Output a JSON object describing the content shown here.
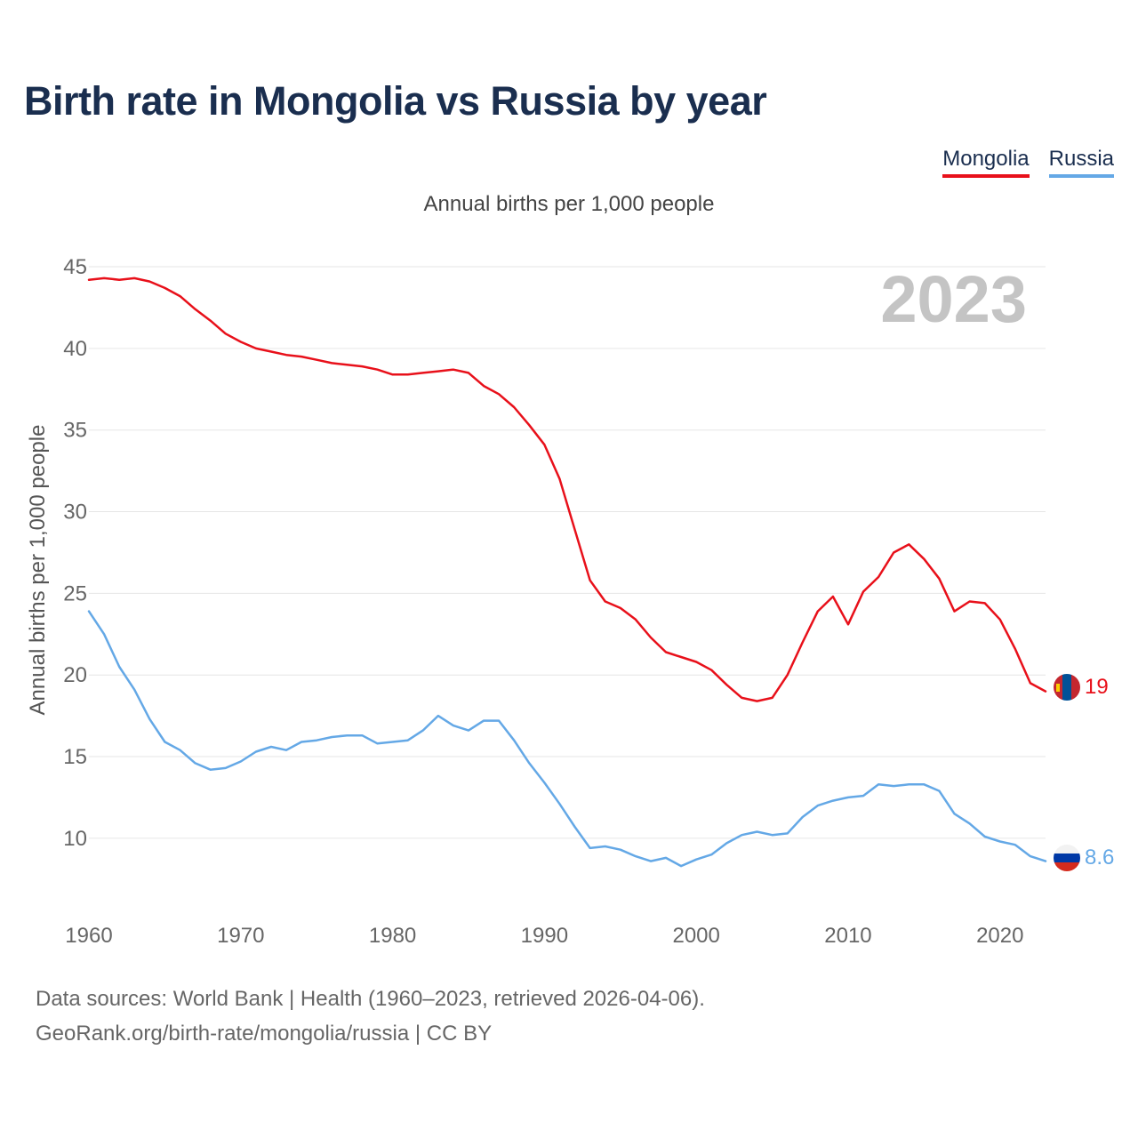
{
  "title": "Birth rate in Mongolia vs Russia by year",
  "subtitle": "Annual births per 1,000 people",
  "year_watermark": "2023",
  "legend": [
    {
      "label": "Mongolia",
      "color": "#e8101a"
    },
    {
      "label": "Russia",
      "color": "#64a8e6"
    }
  ],
  "footer": {
    "line1": "Data sources: World Bank | Health (1960–2023, retrieved 2026-04-06).",
    "line2": "GeoRank.org/birth-rate/mongolia/russia | CC BY"
  },
  "chart_data": {
    "type": "line",
    "title": "Birth rate in Mongolia vs Russia by year",
    "xlabel": "",
    "ylabel": "Annual births per 1,000 people",
    "xlim": [
      1960,
      2023
    ],
    "ylim": [
      5.8,
      46.2
    ],
    "yticks": [
      10,
      15,
      20,
      25,
      30,
      35,
      40,
      45
    ],
    "xticks": [
      1960,
      1970,
      1980,
      1990,
      2000,
      2010,
      2020
    ],
    "grid": true,
    "legend_position": "top-right",
    "x_start": 1960,
    "series": [
      {
        "name": "Mongolia",
        "color": "#e8101a",
        "end_label": "19",
        "flag": "mongolia-flag-icon",
        "values": [
          44.2,
          44.3,
          44.2,
          44.3,
          44.1,
          43.7,
          43.2,
          42.4,
          41.7,
          40.9,
          40.4,
          40.0,
          39.8,
          39.6,
          39.5,
          39.3,
          39.1,
          39.0,
          38.9,
          38.7,
          38.4,
          38.4,
          38.5,
          38.6,
          38.7,
          38.5,
          37.7,
          37.2,
          36.4,
          35.3,
          34.1,
          32.0,
          28.9,
          25.8,
          24.5,
          24.1,
          23.4,
          22.3,
          21.4,
          21.1,
          20.8,
          20.3,
          19.4,
          18.6,
          18.4,
          18.6,
          20.0,
          22.0,
          23.9,
          24.8,
          23.1,
          25.1,
          26.0,
          27.5,
          28.0,
          27.1,
          25.9,
          23.9,
          24.5,
          24.4,
          23.4,
          21.6,
          19.5,
          19.0
        ]
      },
      {
        "name": "Russia",
        "color": "#64a8e6",
        "end_label": "8.6",
        "flag": "russia-flag-icon",
        "values": [
          23.9,
          22.5,
          20.5,
          19.1,
          17.3,
          15.9,
          15.4,
          14.6,
          14.2,
          14.3,
          14.7,
          15.3,
          15.6,
          15.4,
          15.9,
          16.0,
          16.2,
          16.3,
          16.3,
          15.8,
          15.9,
          16.0,
          16.6,
          17.5,
          16.9,
          16.6,
          17.2,
          17.2,
          16.0,
          14.6,
          13.4,
          12.1,
          10.7,
          9.4,
          9.5,
          9.3,
          8.9,
          8.6,
          8.8,
          8.3,
          8.7,
          9.0,
          9.7,
          10.2,
          10.4,
          10.2,
          10.3,
          11.3,
          12.0,
          12.3,
          12.5,
          12.6,
          13.3,
          13.2,
          13.3,
          13.3,
          12.9,
          11.5,
          10.9,
          10.1,
          9.8,
          9.6,
          8.9,
          8.6
        ]
      }
    ]
  }
}
